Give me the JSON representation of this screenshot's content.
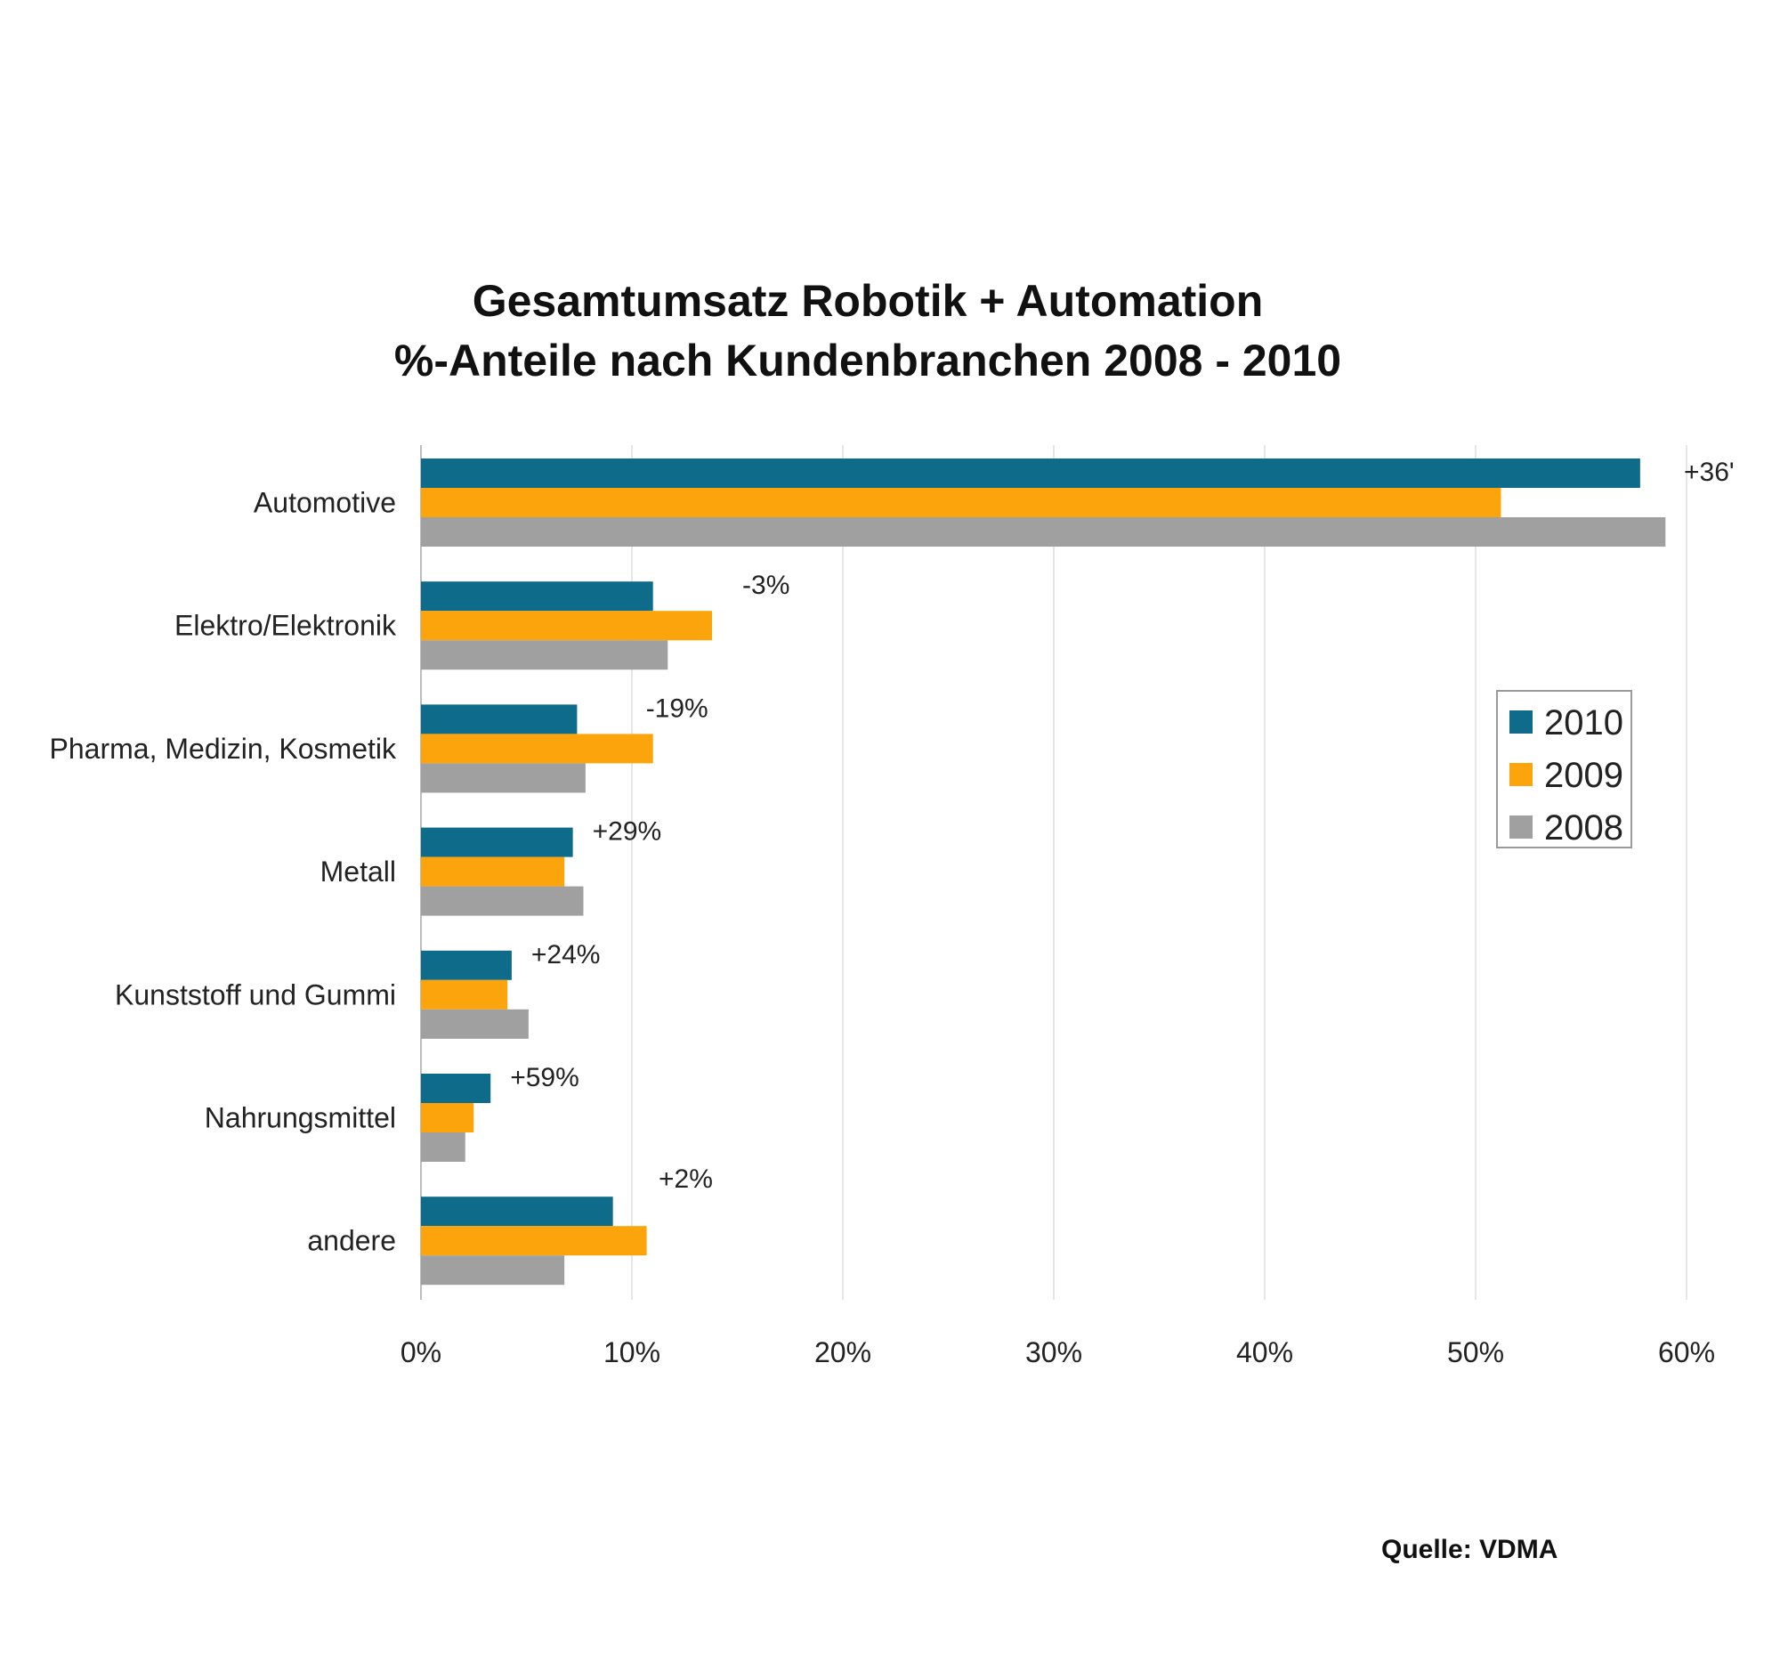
{
  "chart_data": {
    "type": "bar",
    "orientation": "horizontal",
    "title": "Gesamtumsatz Robotik + Automation",
    "subtitle": "%-Anteile nach Kundenbranchen 2008 - 2010",
    "categories": [
      "Automotive",
      "Elektro/Elektronik",
      "Pharma, Medizin, Kosmetik",
      "Metall",
      "Kunststoff und Gummi",
      "Nahrungsmittel",
      "andere"
    ],
    "series": [
      {
        "name": "2010",
        "color": "#0e6b8a",
        "values": [
          57.8,
          11.0,
          7.4,
          7.2,
          4.3,
          3.3,
          9.1
        ]
      },
      {
        "name": "2009",
        "color": "#fca40c",
        "values": [
          51.2,
          13.8,
          11.0,
          6.8,
          4.1,
          2.5,
          10.7
        ]
      },
      {
        "name": "2008",
        "color": "#a0a0a0",
        "values": [
          59.0,
          11.7,
          7.8,
          7.7,
          5.1,
          2.1,
          6.8
        ]
      }
    ],
    "annotations": [
      "+36'",
      "-3%",
      "-19%",
      "+29%",
      "+24%",
      "+59%",
      "+2%"
    ],
    "xlim": [
      0,
      60
    ],
    "xticks": [
      "0%",
      "10%",
      "20%",
      "30%",
      "40%",
      "50%",
      "60%"
    ],
    "grid": true,
    "legend_position": "right",
    "source": "Quelle: VDMA"
  }
}
